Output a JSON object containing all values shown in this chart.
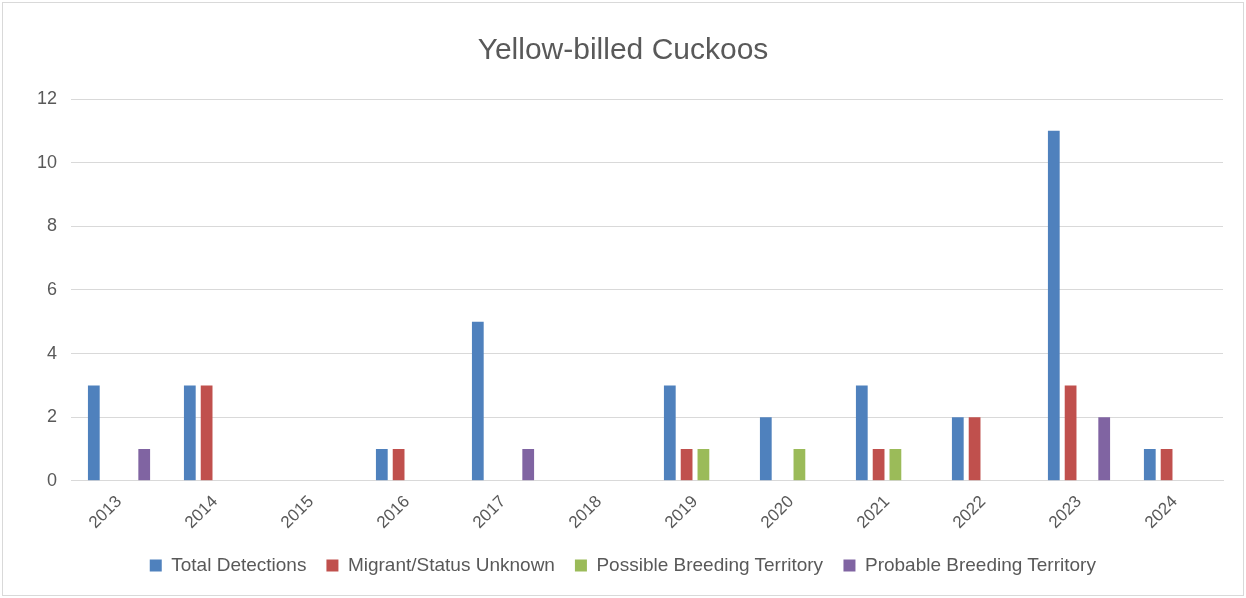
{
  "chart_data": {
    "type": "bar",
    "title": "Yellow-billed Cuckoos",
    "categories": [
      "2013",
      "2014",
      "2015",
      "2016",
      "2017",
      "2018",
      "2019",
      "2020",
      "2021",
      "2022",
      "2023",
      "2024"
    ],
    "series": [
      {
        "name": "Total Detections",
        "color": "#4f81bd",
        "values": [
          3,
          3,
          0,
          1,
          5,
          0,
          3,
          2,
          3,
          2,
          11,
          1
        ]
      },
      {
        "name": "Migrant/Status Unknown",
        "color": "#c0504d",
        "values": [
          0,
          3,
          0,
          1,
          0,
          0,
          1,
          0,
          1,
          2,
          3,
          1
        ]
      },
      {
        "name": "Possible Breeding Territory",
        "color": "#9bbb59",
        "values": [
          0,
          0,
          0,
          0,
          0,
          0,
          1,
          1,
          1,
          0,
          0,
          0
        ]
      },
      {
        "name": "Probable Breeding Territory",
        "color": "#8064a2",
        "values": [
          1,
          0,
          0,
          0,
          1,
          0,
          0,
          0,
          0,
          0,
          2,
          0
        ]
      }
    ],
    "ylim": [
      0,
      12
    ],
    "yticks": [
      0,
      2,
      4,
      6,
      8,
      10,
      12
    ],
    "grid": "y",
    "legend": "bottom"
  }
}
